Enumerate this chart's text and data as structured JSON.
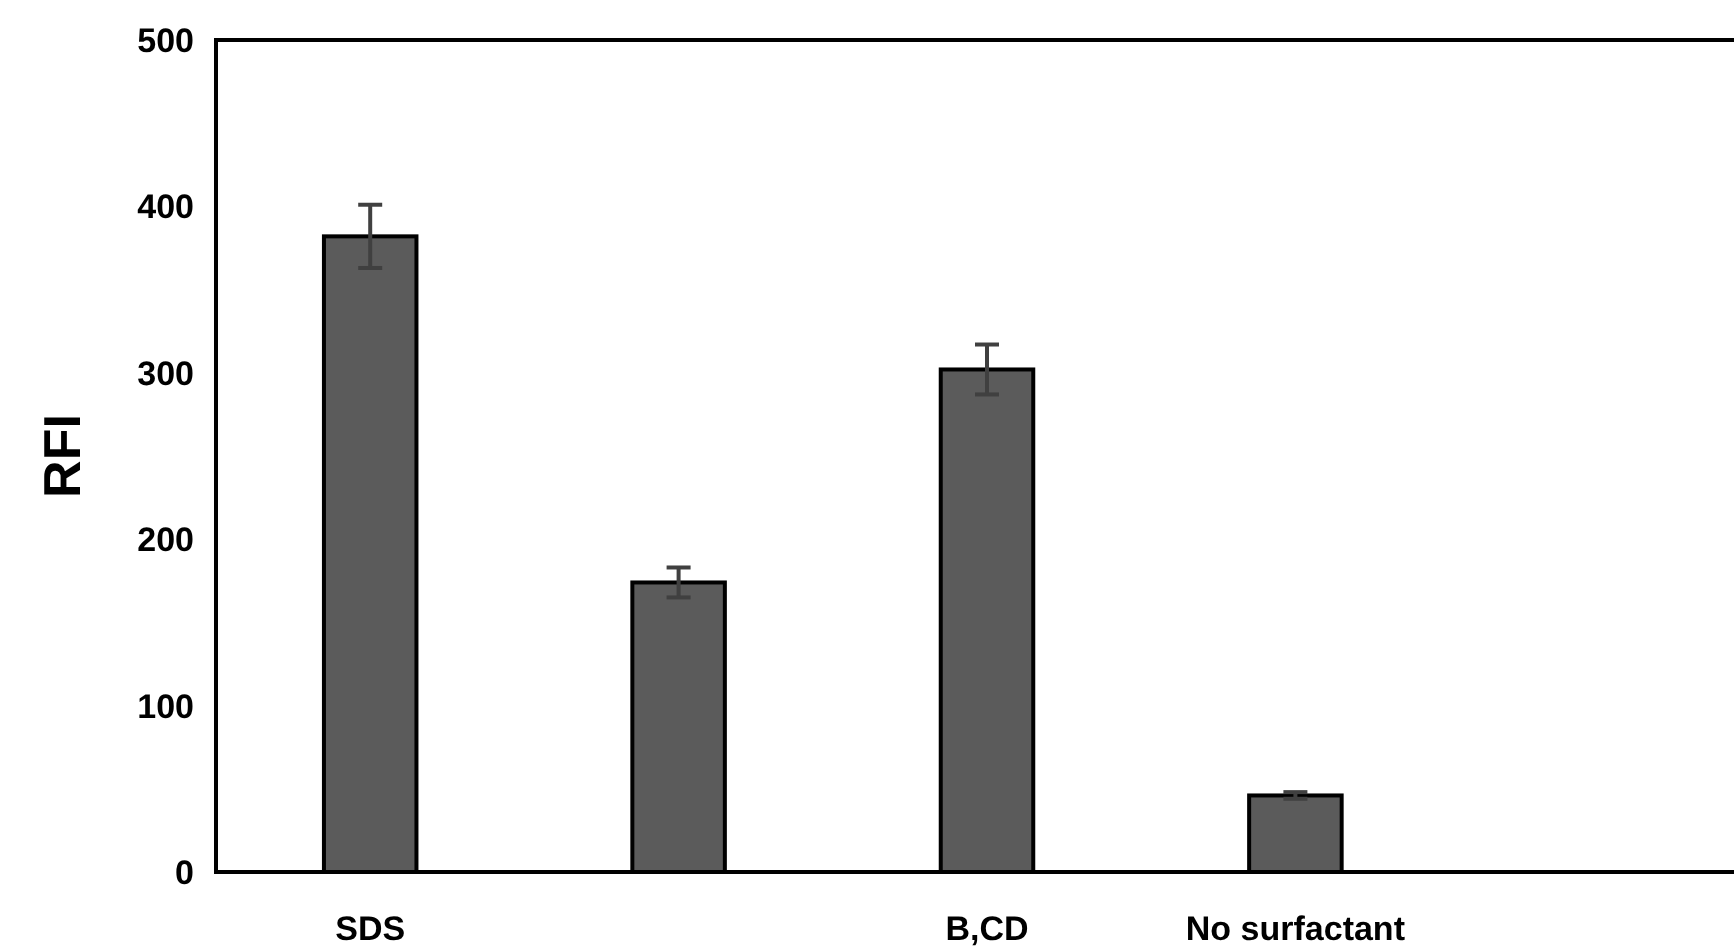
{
  "chart_data": {
    "type": "bar",
    "ylabel": "RFI",
    "categories": [
      "SDS",
      null,
      "B,CD",
      "No surfactant",
      null
    ],
    "values": [
      382,
      174,
      302,
      46,
      null
    ],
    "errors": [
      19,
      9,
      15,
      2,
      null
    ],
    "color": "#5b5b5b",
    "ylim": [
      0,
      500
    ],
    "yticks": [
      0,
      100,
      200,
      300,
      400,
      500
    ],
    "grid": false
  }
}
